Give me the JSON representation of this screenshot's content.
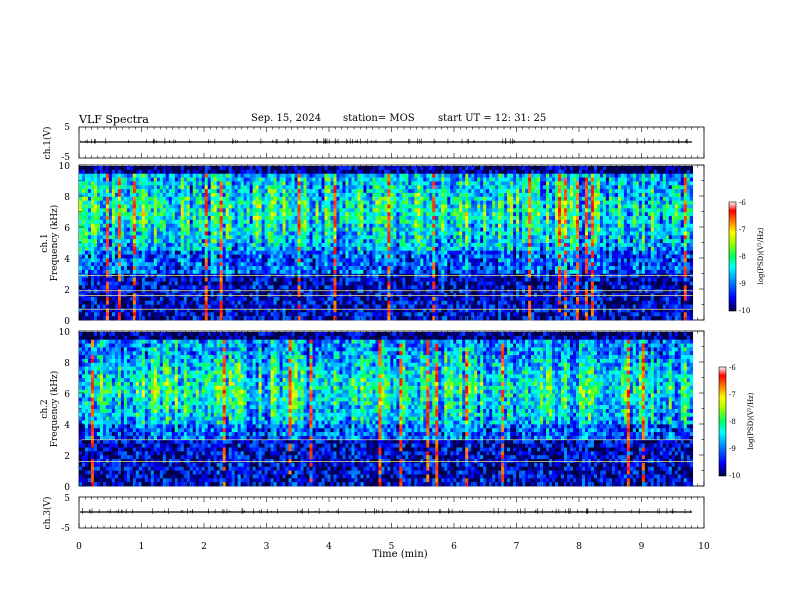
{
  "header": {
    "title": "VLF Spectra",
    "date": "Sep. 15, 2024",
    "station": "station= MOS",
    "start": "start  UT =   12: 31: 25"
  },
  "chart_data": [
    {
      "type": "line",
      "panel": "ch1-waveform",
      "ylabel": "ch.1(V)",
      "ylim": [
        -5,
        5
      ],
      "yticks": [
        "5",
        "-5"
      ],
      "x_range_min": [
        0,
        9.82
      ],
      "baseline_value": -1.1,
      "description_color": "#000000"
    },
    {
      "type": "heatmap",
      "panel": "ch1-spectrogram",
      "ylabel": "ch.1\nFrequency (kHz)",
      "ylim": [
        0,
        10
      ],
      "yticks": [
        "0",
        "2",
        "4",
        "6",
        "8",
        "10"
      ],
      "x_range_min": [
        0,
        9.82
      ],
      "colorbar": {
        "label": "log(PSD)(V²/Hz)",
        "range": [
          -10,
          -6
        ],
        "ticks": [
          "-6",
          "-7",
          "-8",
          "-9",
          "-10"
        ]
      },
      "dominant_band_kHz": [
        4.5,
        9.5
      ],
      "horizontal_lines_kHz": [
        0.7,
        1.6,
        1.9,
        2.9
      ]
    },
    {
      "type": "heatmap",
      "panel": "ch2-spectrogram",
      "ylabel": "ch.2\nFrequency (kHz)",
      "ylim": [
        0,
        10
      ],
      "yticks": [
        "0",
        "2",
        "4",
        "6",
        "8",
        "10"
      ],
      "x_range_min": [
        0,
        9.82
      ],
      "colorbar": {
        "label": "log(PSD)(V²/Hz)",
        "range": [
          -10,
          -6
        ],
        "ticks": [
          "-6",
          "-7",
          "-8",
          "-9",
          "-10"
        ]
      },
      "dominant_band_kHz": [
        4.0,
        8.5
      ],
      "horizontal_lines_kHz": [
        1.6,
        3.0
      ]
    },
    {
      "type": "line",
      "panel": "ch3-waveform",
      "ylabel": "ch.3(V)",
      "ylim": [
        -5,
        5
      ],
      "yticks": [
        "5",
        "-5"
      ],
      "x_range_min": [
        0,
        9.82
      ],
      "baseline_value": -1.2
    }
  ],
  "xaxis": {
    "label": "Time (min)",
    "ticks": [
      "0",
      "1",
      "2",
      "3",
      "4",
      "5",
      "6",
      "7",
      "8",
      "9",
      "10"
    ],
    "range": [
      0,
      10
    ]
  },
  "colormap": [
    "#00008b",
    "#0000ff",
    "#0080ff",
    "#00ffff",
    "#00ff80",
    "#80ff00",
    "#ffff00",
    "#ff8000",
    "#ff0000",
    "#ffffff"
  ]
}
